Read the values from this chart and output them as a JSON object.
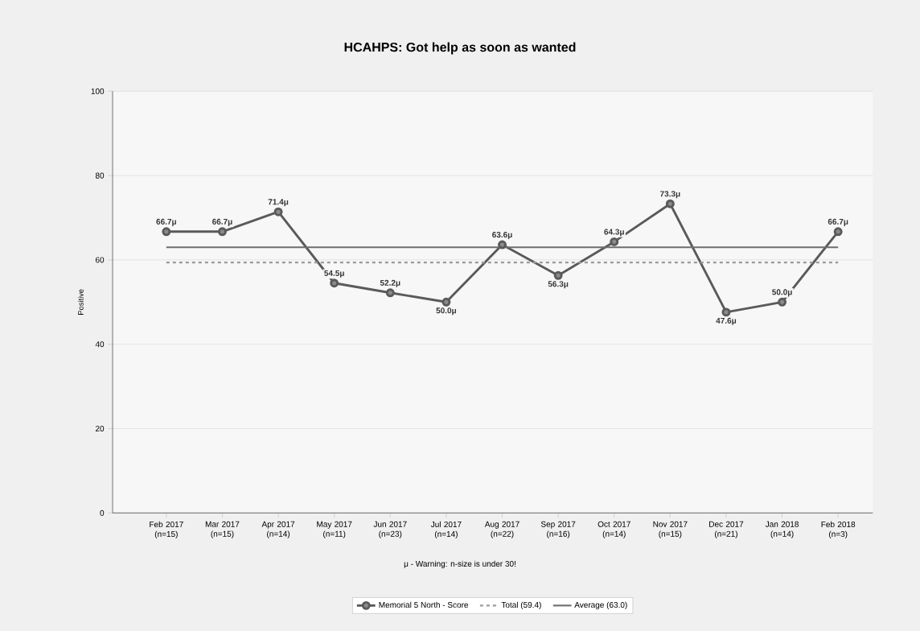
{
  "chart_data": {
    "type": "line",
    "title": "HCAHPS: Got help as soon as wanted",
    "ylabel": "Positive",
    "categories": [
      "Feb 2017 (n=15)",
      "Mar 2017 (n=15)",
      "Apr 2017 (n=14)",
      "May 2017 (n=11)",
      "Jun 2017 (n=23)",
      "Jul 2017 (n=14)",
      "Aug 2017 (n=22)",
      "Sep 2017 (n=16)",
      "Oct 2017 (n=14)",
      "Nov 2017 (n=15)",
      "Dec 2017 (n=21)",
      "Jan 2018 (n=14)",
      "Feb 2018 (n=3)"
    ],
    "series": [
      {
        "name": "Memorial 5 North - Score",
        "color": "#5a5a5a",
        "marker": "circle",
        "line_style": "solid",
        "values": [
          66.7,
          66.7,
          71.4,
          54.5,
          52.2,
          50.0,
          63.6,
          56.3,
          64.3,
          73.3,
          47.6,
          50.0,
          66.7
        ],
        "value_labels": [
          "66.7μ",
          "66.7μ",
          "71.4μ",
          "54.5μ",
          "52.2μ",
          "50.0μ",
          "63.6μ",
          "56.3μ",
          "64.3μ",
          "73.3μ",
          "47.6μ",
          "50.0μ",
          "66.7μ"
        ]
      },
      {
        "name": "Total (59.4)",
        "color": "#9a9a9a",
        "marker": "none",
        "line_style": "dashed",
        "values": [
          59.4,
          59.4,
          59.4,
          59.4,
          59.4,
          59.4,
          59.4,
          59.4,
          59.4,
          59.4,
          59.4,
          59.4,
          59.4
        ]
      },
      {
        "name": "Average (63.0)",
        "color": "#6e6e6e",
        "marker": "none",
        "line_style": "solid",
        "values": [
          63.0,
          63.0,
          63.0,
          63.0,
          63.0,
          63.0,
          63.0,
          63.0,
          63.0,
          63.0,
          63.0,
          63.0,
          63.0
        ]
      }
    ],
    "ylim": [
      0,
      100
    ],
    "yticks": [
      0,
      20,
      40,
      60,
      80,
      100
    ],
    "grid": "y",
    "legend": "bottom",
    "annotations": [
      "μ - Warning: n-size is under 30!"
    ]
  }
}
